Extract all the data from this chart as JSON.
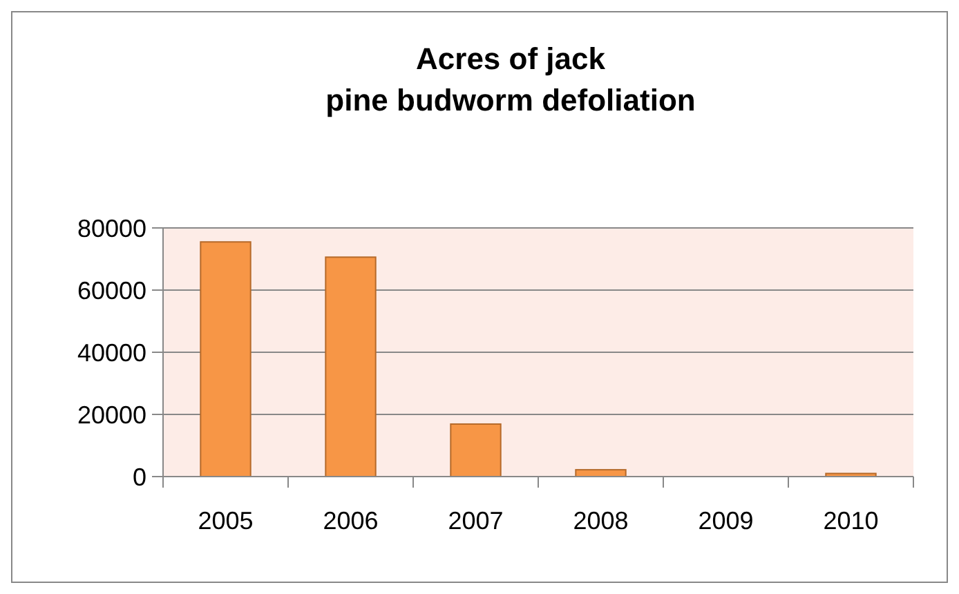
{
  "chart_data": {
    "type": "bar",
    "title": "Acres of jack pine budworm defoliation",
    "categories": [
      "2005",
      "2006",
      "2007",
      "2008",
      "2009",
      "2010"
    ],
    "values": [
      75500,
      70600,
      16900,
      2200,
      0,
      1000
    ],
    "color": "#f79646",
    "ylim": [
      0,
      80000
    ],
    "yticks": [
      0,
      20000,
      40000,
      60000,
      80000
    ],
    "grid": "y"
  }
}
